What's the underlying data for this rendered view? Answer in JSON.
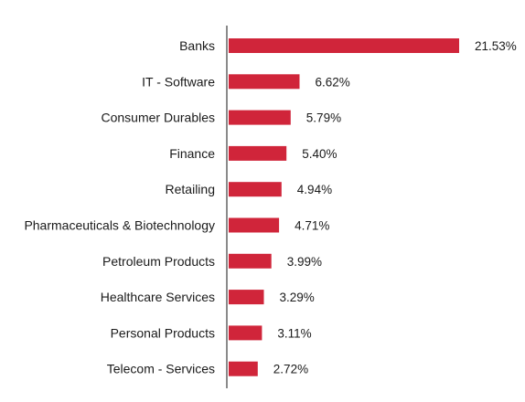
{
  "chart_data": {
    "type": "bar",
    "orientation": "horizontal",
    "categories": [
      "Banks",
      "IT - Software",
      "Consumer Durables",
      "Finance",
      "Retailing",
      "Pharmaceuticals & Biotechnology",
      "Petroleum Products",
      "Healthcare Services",
      "Personal Products",
      "Telecom - Services"
    ],
    "values": [
      21.53,
      6.62,
      5.79,
      5.4,
      4.94,
      4.71,
      3.99,
      3.29,
      3.11,
      2.72
    ],
    "value_labels": [
      "21.53%",
      "6.62%",
      "5.79%",
      "5.40%",
      "4.94%",
      "4.71%",
      "3.99%",
      "3.29%",
      "3.11%",
      "2.72%"
    ],
    "title": "",
    "xlabel": "",
    "ylabel": "",
    "xlim": [
      0,
      21.53
    ],
    "grid": false,
    "legend": "none",
    "bar_color": "#d0253a",
    "axis_color": "#8a8a8a"
  }
}
